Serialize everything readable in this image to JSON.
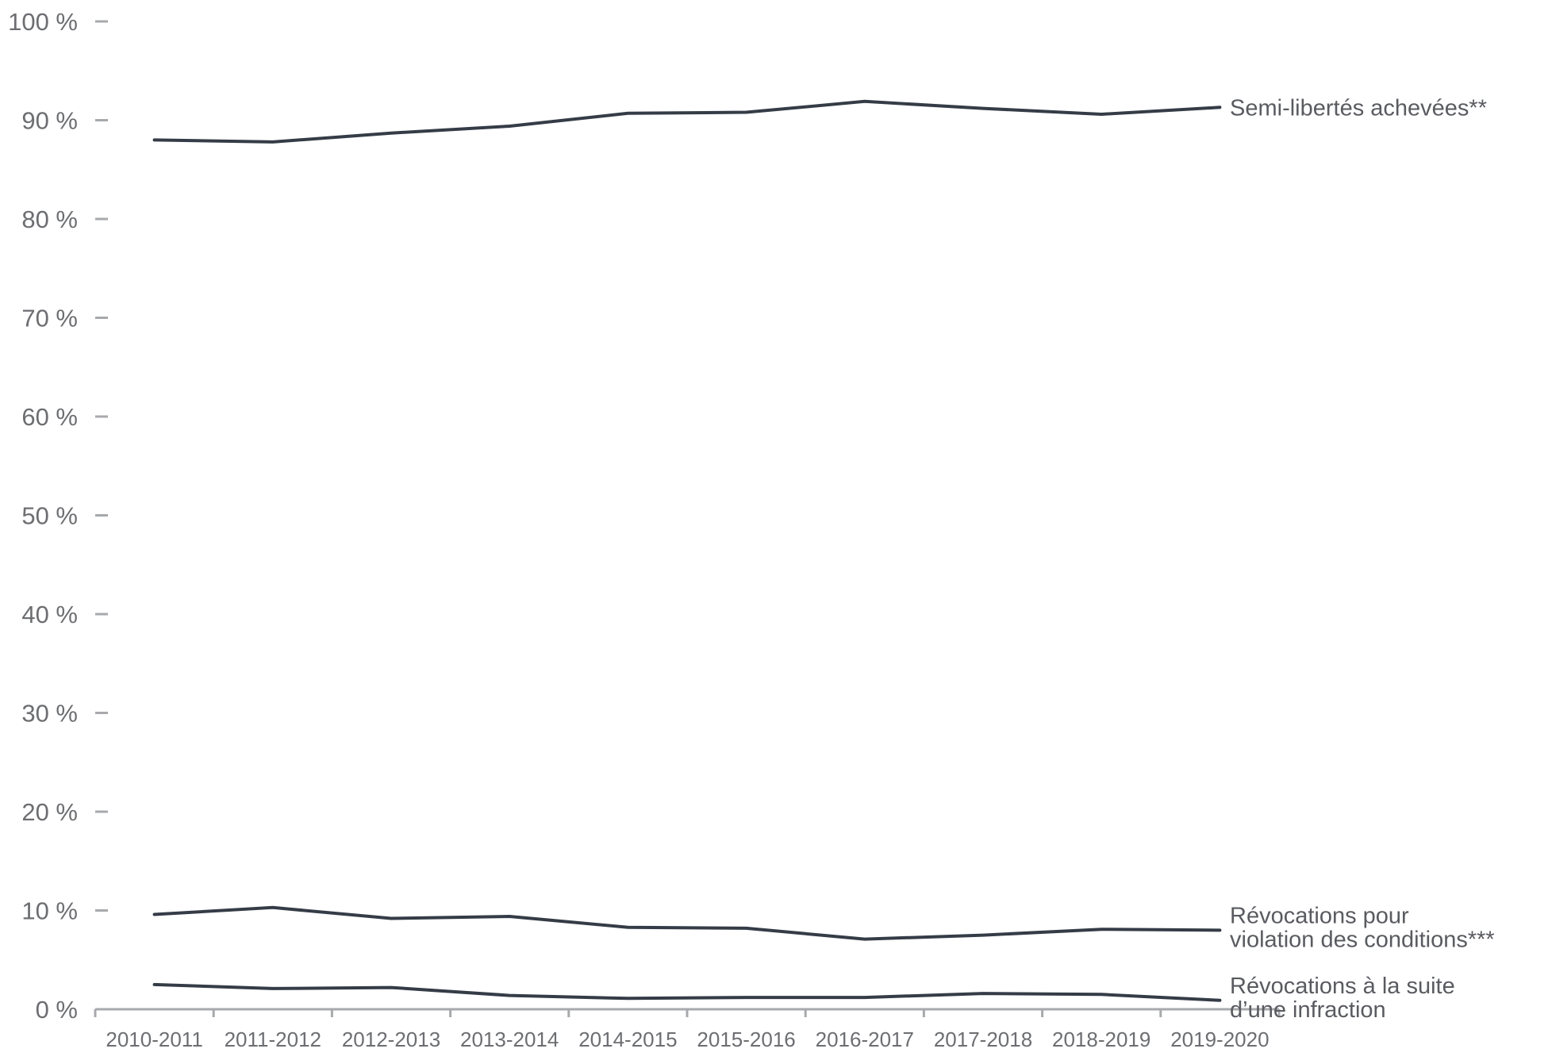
{
  "chart_data": {
    "type": "line",
    "categories": [
      "2010-2011",
      "2011-2012",
      "2012-2013",
      "2013-2014",
      "2014-2015",
      "2015-2016",
      "2016-2017",
      "2017-2018",
      "2018-2019",
      "2019-2020"
    ],
    "y_ticks": [
      "0 %",
      "10 %",
      "20 %",
      "30 %",
      "40 %",
      "50 %",
      "60 %",
      "70 %",
      "80 %",
      "90 %",
      "100 %"
    ],
    "ylim": [
      0,
      100
    ],
    "grid": false,
    "line_color": "#353c47",
    "series": [
      {
        "name": "Semi-libertés achevées**",
        "label_lines": [
          "Semi-libertés achevées**"
        ],
        "values": [
          88.0,
          87.8,
          88.7,
          89.4,
          90.7,
          90.8,
          91.9,
          91.2,
          90.6,
          91.3
        ]
      },
      {
        "name": "Révocations pour violation des conditions***",
        "label_lines": [
          "Révocations pour",
          "violation des conditions***"
        ],
        "values": [
          9.6,
          10.3,
          9.2,
          9.4,
          8.3,
          8.2,
          7.1,
          7.5,
          8.1,
          8.0
        ]
      },
      {
        "name": "Révocations à la suite d’une infraction",
        "label_lines": [
          "Révocations à la suite",
          "d’une infraction"
        ],
        "values": [
          2.5,
          2.1,
          2.2,
          1.4,
          1.1,
          1.2,
          1.2,
          1.6,
          1.5,
          0.9
        ]
      }
    ]
  }
}
